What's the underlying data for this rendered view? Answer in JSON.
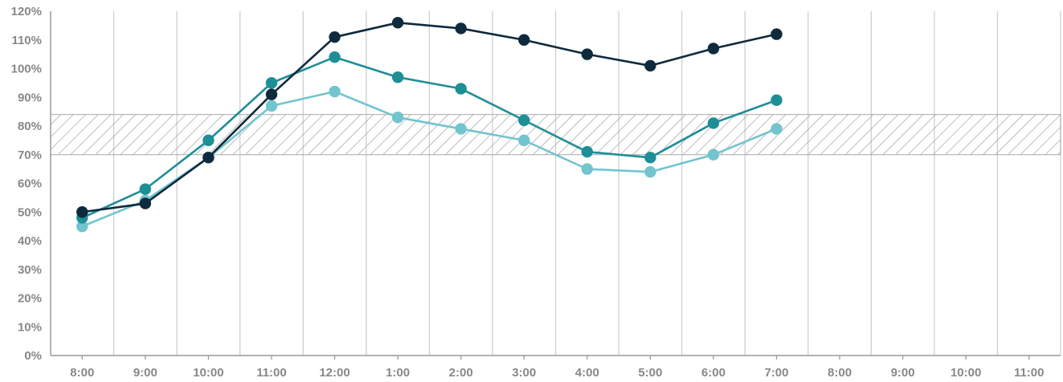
{
  "chart_data": {
    "type": "line",
    "title": "",
    "xlabel": "",
    "ylabel": "",
    "x_ticks": [
      "8:00",
      "9:00",
      "10:00",
      "11:00",
      "12:00",
      "1:00",
      "2:00",
      "3:00",
      "4:00",
      "5:00",
      "6:00",
      "7:00",
      "8:00",
      "9:00",
      "10:00",
      "11:00"
    ],
    "y_ticks": [
      "0%",
      "10%",
      "20%",
      "30%",
      "40%",
      "50%",
      "60%",
      "70%",
      "80%",
      "90%",
      "100%",
      "110%",
      "120%"
    ],
    "ylim": [
      0,
      120
    ],
    "y_unit": "%",
    "grid": "vertical lines at each hour",
    "legend": "none",
    "band": {
      "from": 70,
      "to": 84,
      "pattern": "diagonal hatch",
      "color": "#aaaaaa"
    },
    "x_positions": [
      0.5,
      1.5,
      2.5,
      3.5,
      4.5,
      5.5,
      6.5,
      7.5,
      8.5,
      9.5,
      10.5,
      11.5
    ],
    "series": [
      {
        "color": "#72c4cf",
        "values": [
          45,
          54,
          69,
          87,
          92,
          83,
          79,
          75,
          65,
          64,
          70,
          79
        ]
      },
      {
        "color": "#1e8e97",
        "values": [
          48,
          58,
          75,
          95,
          104,
          97,
          93,
          82,
          71,
          69,
          81,
          89
        ]
      },
      {
        "color": "#0e2a3d",
        "values": [
          50,
          53,
          69,
          91,
          111,
          116,
          114,
          110,
          105,
          101,
          107,
          112
        ]
      }
    ]
  }
}
